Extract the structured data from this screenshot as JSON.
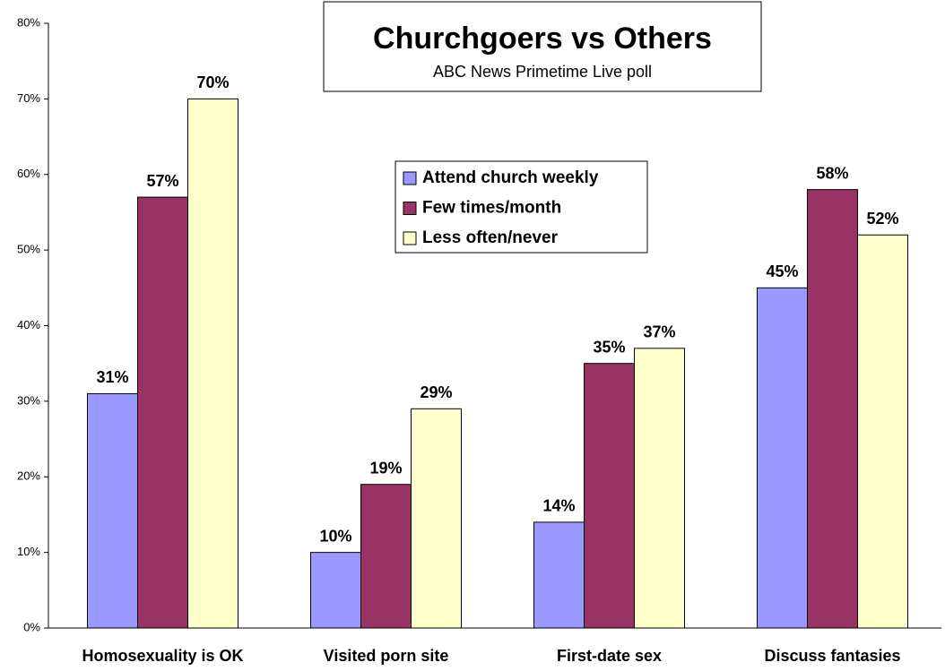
{
  "chart_data": {
    "type": "bar",
    "title": "Churchgoers vs Others",
    "subtitle": "ABC News Primetime Live poll",
    "categories": [
      "Homosexuality is OK",
      "Visited porn site",
      "First-date sex",
      "Discuss fantasies"
    ],
    "series": [
      {
        "name": "Attend church weekly",
        "color": "#9999ff",
        "values": [
          31,
          10,
          14,
          45
        ],
        "value_labels": [
          "31%",
          "10%",
          "14%",
          "45%"
        ]
      },
      {
        "name": "Few times/month",
        "color": "#993366",
        "values": [
          57,
          19,
          35,
          58
        ],
        "value_labels": [
          "57%",
          "19%",
          "35%",
          "58%"
        ]
      },
      {
        "name": "Less often/never",
        "color": "#ffffcc",
        "values": [
          70,
          29,
          37,
          52
        ],
        "value_labels": [
          "70%",
          "29%",
          "37%",
          "52%"
        ]
      }
    ],
    "ylim": [
      0,
      80
    ],
    "yticks": [
      {
        "value": 0,
        "label": "0%"
      },
      {
        "value": 10,
        "label": "10%"
      },
      {
        "value": 20,
        "label": "20%"
      },
      {
        "value": 30,
        "label": "30%"
      },
      {
        "value": 40,
        "label": "40%"
      },
      {
        "value": 50,
        "label": "50%"
      },
      {
        "value": 60,
        "label": "60%"
      },
      {
        "value": 70,
        "label": "70%"
      },
      {
        "value": 80,
        "label": "80%"
      }
    ],
    "grid": false
  }
}
